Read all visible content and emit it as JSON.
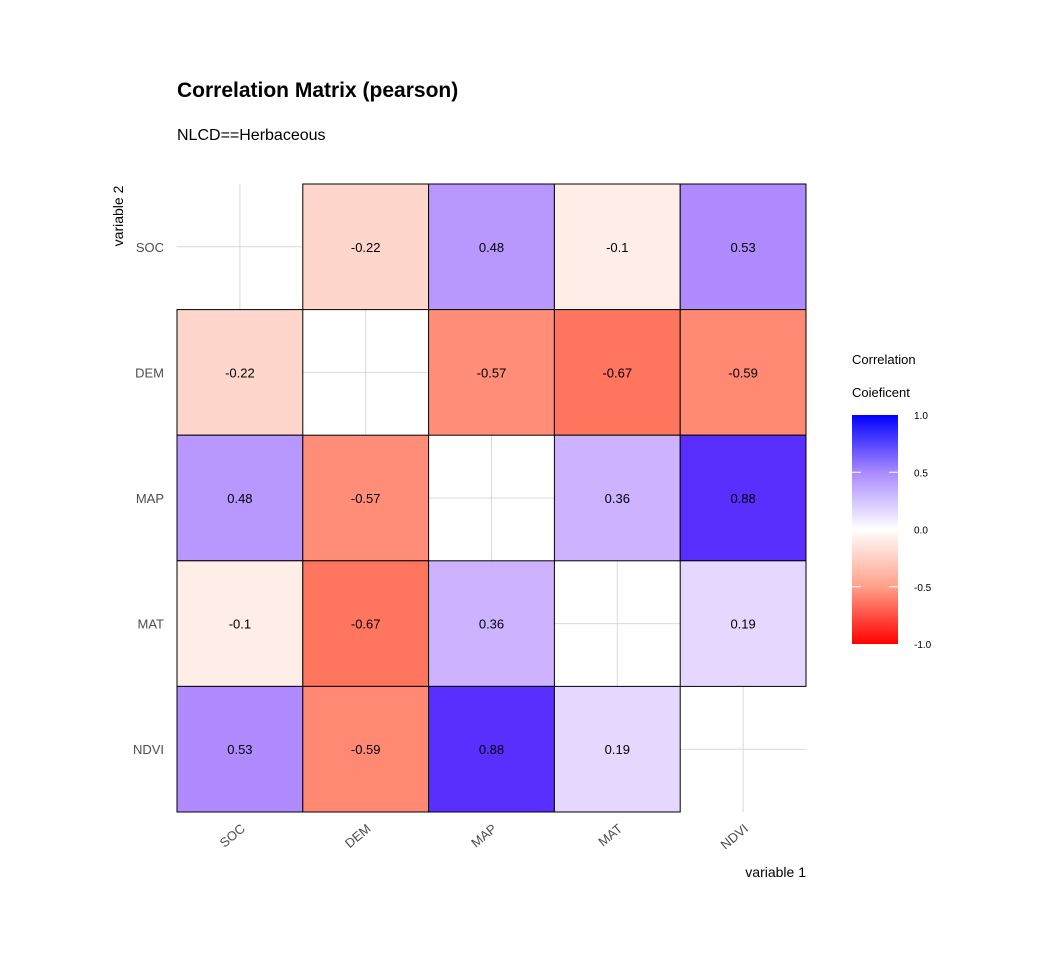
{
  "chart_data": {
    "type": "heatmap",
    "title": "Correlation Matrix (pearson)",
    "subtitle": "NLCD==Herbaceous",
    "xlabel": "variable 1",
    "ylabel": "variable 2",
    "variables": [
      "SOC",
      "DEM",
      "MAP",
      "MAT",
      "NDVI"
    ],
    "matrix": [
      [
        null,
        -0.22,
        0.48,
        -0.1,
        0.53
      ],
      [
        -0.22,
        null,
        -0.57,
        -0.67,
        -0.59
      ],
      [
        0.48,
        -0.57,
        null,
        0.36,
        0.88
      ],
      [
        -0.1,
        -0.67,
        0.36,
        null,
        0.19
      ],
      [
        0.53,
        -0.59,
        0.88,
        0.19,
        null
      ]
    ],
    "legend": {
      "title_line1": "Correlation",
      "title_line2": "Coieficent",
      "ticks": [
        "1.0",
        "0.5",
        "0.0",
        "-0.5",
        "-1.0"
      ],
      "range": [
        -1,
        1
      ],
      "low_color": "#ff0000",
      "mid_color": "#ffffff",
      "high_color": "#0000ff",
      "placement": "right"
    }
  }
}
